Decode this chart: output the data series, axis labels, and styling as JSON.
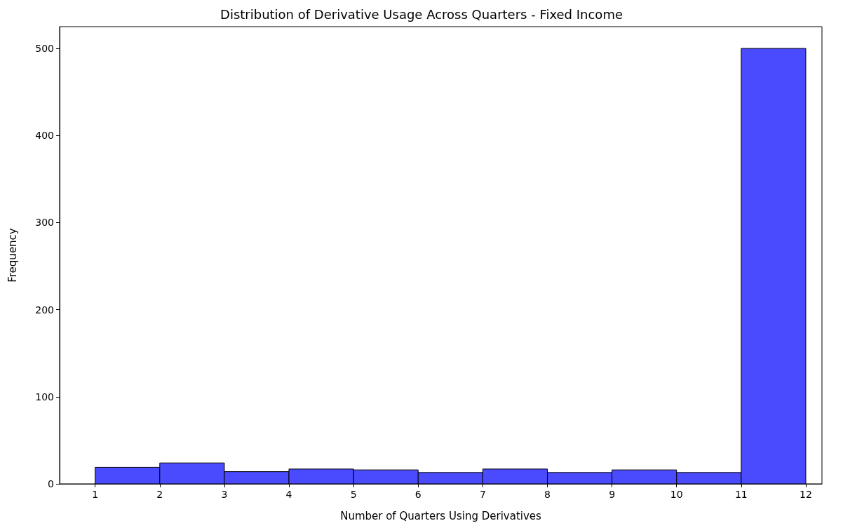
{
  "chart_data": {
    "type": "histogram",
    "title": "Distribution of Derivative Usage Across Quarters - Fixed Income",
    "xlabel": "Number of Quarters Using Derivatives",
    "ylabel": "Frequency",
    "bins": [
      1,
      2,
      3,
      4,
      5,
      6,
      7,
      8,
      9,
      10,
      11,
      12
    ],
    "values": [
      19,
      24,
      14,
      17,
      16,
      13,
      17,
      13,
      16,
      13,
      500
    ],
    "color": "#4a4aff",
    "xlim": [
      0.45,
      12.25
    ],
    "xticks": [
      1,
      2,
      3,
      4,
      5,
      6,
      7,
      8,
      9,
      10,
      11,
      12
    ],
    "ylim": [
      0,
      525
    ],
    "yticks": [
      0,
      100,
      200,
      300,
      400,
      500
    ],
    "grid": false
  }
}
